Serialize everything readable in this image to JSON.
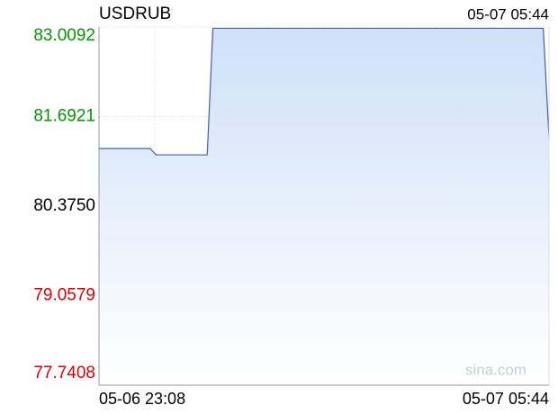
{
  "chart_data": {
    "type": "line",
    "title": "USDRUB",
    "updated": "05-07 05:44",
    "x_start": "05-06 23:08",
    "x_end": "05-07 05:44",
    "watermark": "sina.com",
    "series": [
      {
        "name": "USDRUB",
        "color": "#3a63b0",
        "fill": "#cfe0f8",
        "values": [
          81.222,
          81.222,
          81.222,
          81.222,
          81.222,
          81.222,
          81.222,
          81.222,
          81.222,
          81.222,
          81.129,
          81.129,
          81.129,
          81.129,
          81.129,
          81.129,
          81.129,
          81.129,
          81.129,
          81.129,
          82.99,
          82.99,
          82.99,
          82.99,
          82.99,
          82.99,
          82.99,
          82.99,
          82.99,
          82.99,
          82.99,
          82.99,
          82.99,
          82.99,
          82.99,
          82.99,
          82.99,
          82.99,
          82.99,
          82.99,
          82.99,
          82.99,
          82.99,
          82.99,
          82.99,
          82.99,
          82.99,
          82.99,
          82.99,
          82.99,
          82.99,
          82.99,
          82.99,
          82.99,
          82.99,
          82.99,
          82.99,
          82.99,
          82.99,
          82.99,
          82.99,
          82.99,
          82.99,
          82.99,
          82.99,
          82.99,
          82.99,
          82.99,
          82.99,
          82.99,
          82.99,
          82.99,
          82.99,
          82.99,
          82.99,
          82.99,
          82.99,
          82.99,
          82.99,
          81.381
        ]
      }
    ],
    "ylim": [
      77.7408,
      83.0092
    ],
    "yticks": [
      83.0092,
      81.6921,
      {
        "value": 80.375,
        "label": "80.3750"
      },
      79.0579,
      77.7408
    ],
    "up_color": "#009900",
    "down_color": "#e00000",
    "base_color": "#000000",
    "grid": true
  }
}
